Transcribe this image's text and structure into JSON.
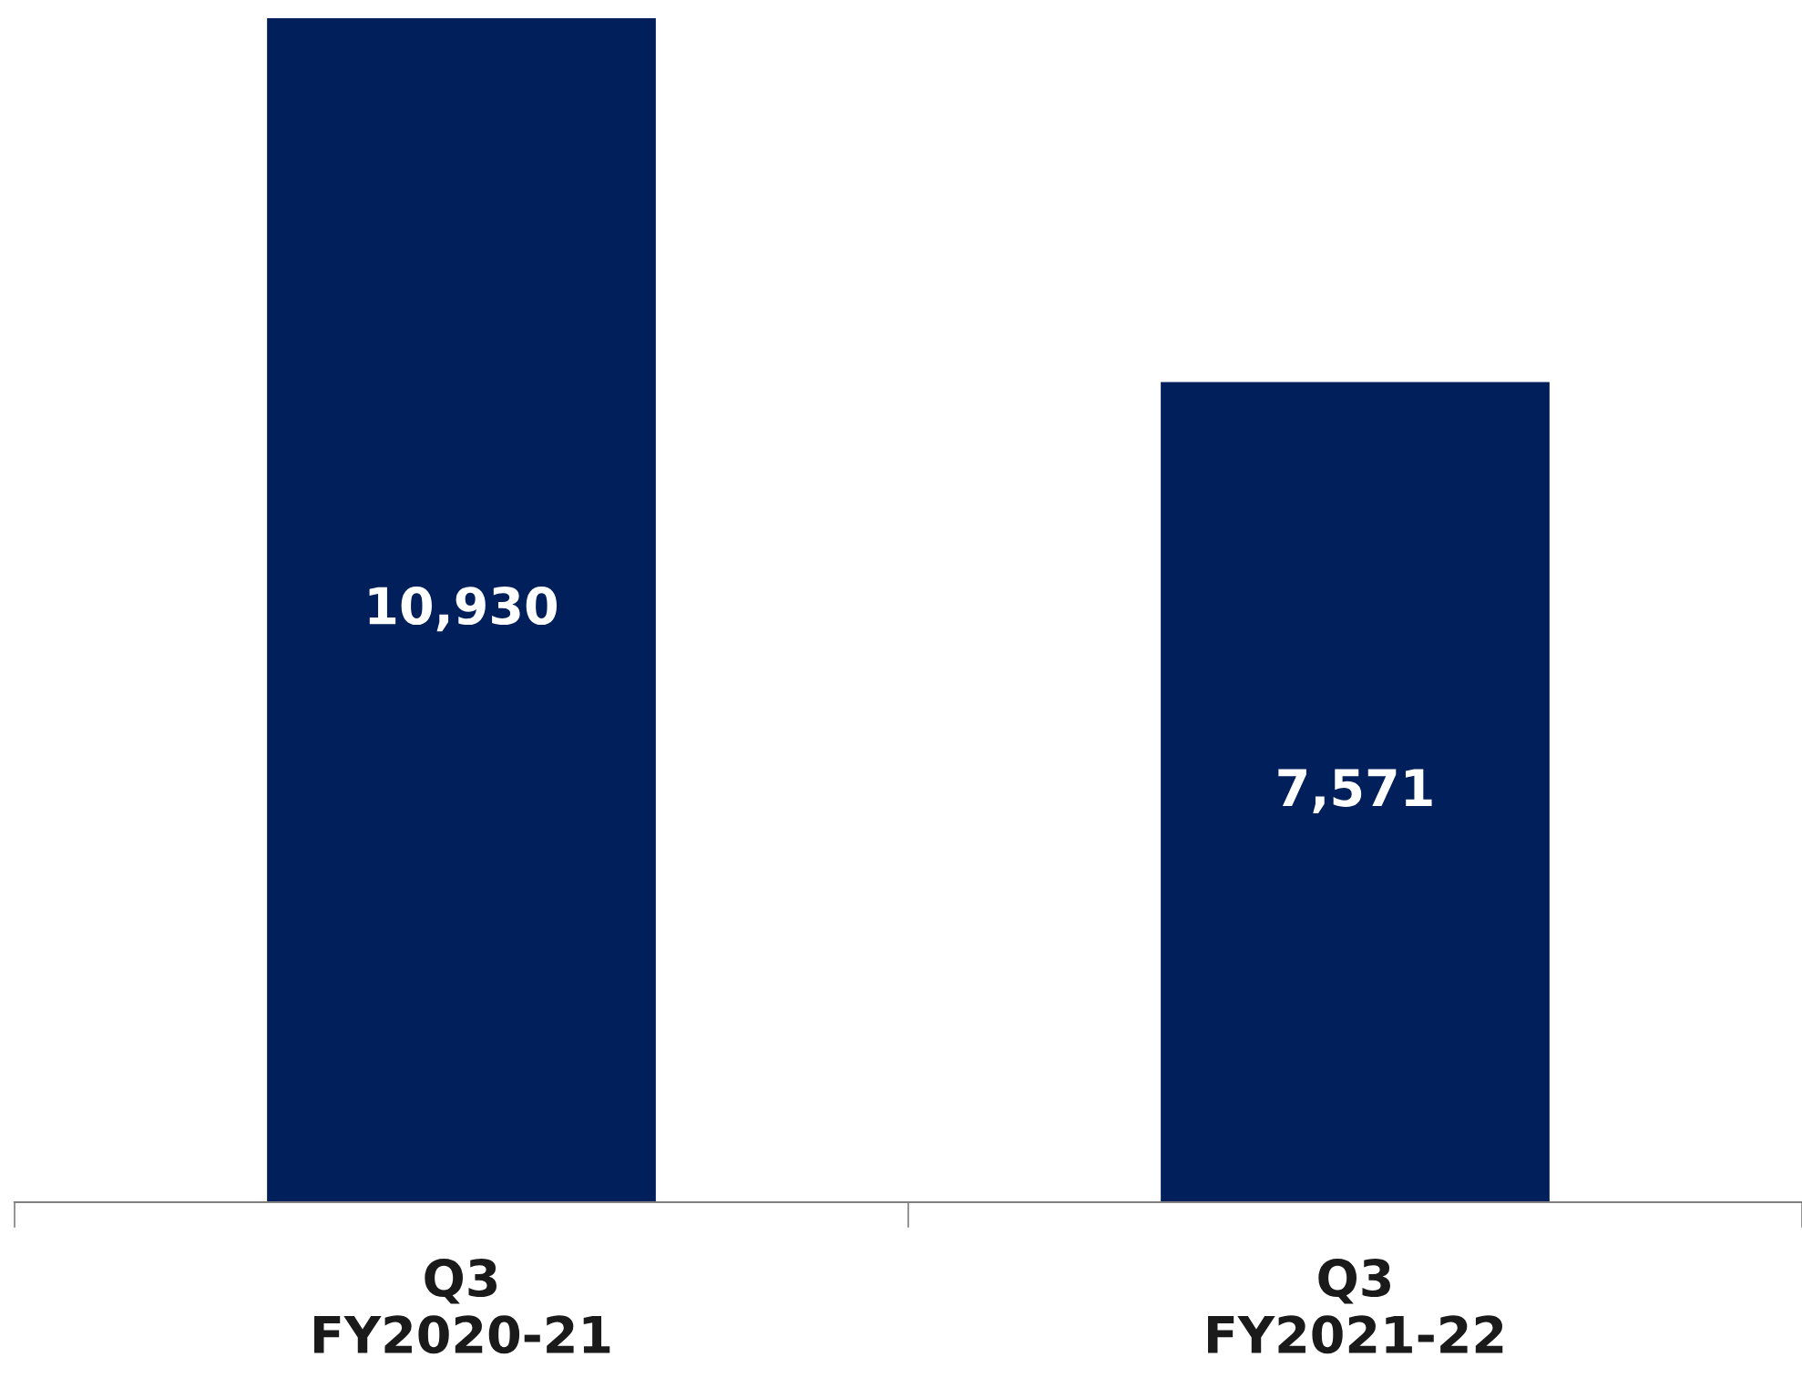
{
  "chart_data": {
    "type": "bar",
    "categories": [
      "Q3\nFY2020-21",
      "Q3\nFY2021-22"
    ],
    "values": [
      10930,
      7571
    ],
    "color": "#001f5b",
    "data_labels": true,
    "value_labels": [
      "10,930",
      "7,571"
    ],
    "grid": false,
    "legend": false
  }
}
